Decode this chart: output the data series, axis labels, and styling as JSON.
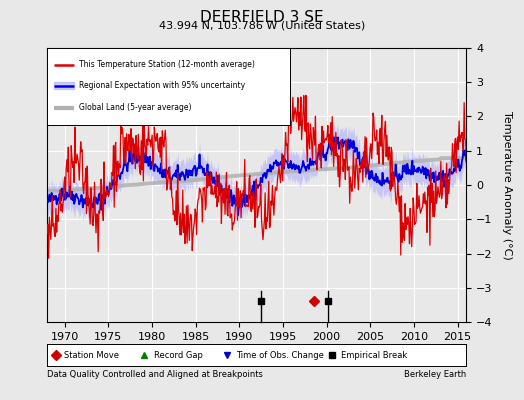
{
  "title": "DEERFIELD 3 SE",
  "subtitle": "43.994 N, 103.786 W (United States)",
  "ylabel": "Temperature Anomaly (°C)",
  "xlabel_note": "Data Quality Controlled and Aligned at Breakpoints",
  "credit": "Berkeley Earth",
  "xlim": [
    1968,
    2016
  ],
  "ylim": [
    -4,
    4
  ],
  "yticks": [
    -4,
    -3,
    -2,
    -1,
    0,
    1,
    2,
    3,
    4
  ],
  "xticks": [
    1970,
    1975,
    1980,
    1985,
    1990,
    1995,
    2000,
    2005,
    2010,
    2015
  ],
  "bg_color": "#e8e8e8",
  "plot_bg_color": "#e8e8e8",
  "regional_fill_color": "#aaaaff",
  "regional_line_color": "#0000dd",
  "station_line_color": "#dd0000",
  "global_line_color": "#b0b0b0",
  "grid_color": "#ffffff",
  "marker_events": {
    "empirical_breaks": [
      1992.5,
      2000.2
    ],
    "station_move": [
      1998.5
    ],
    "time_obs_change": [],
    "record_gap": []
  },
  "event_y": -3.4
}
